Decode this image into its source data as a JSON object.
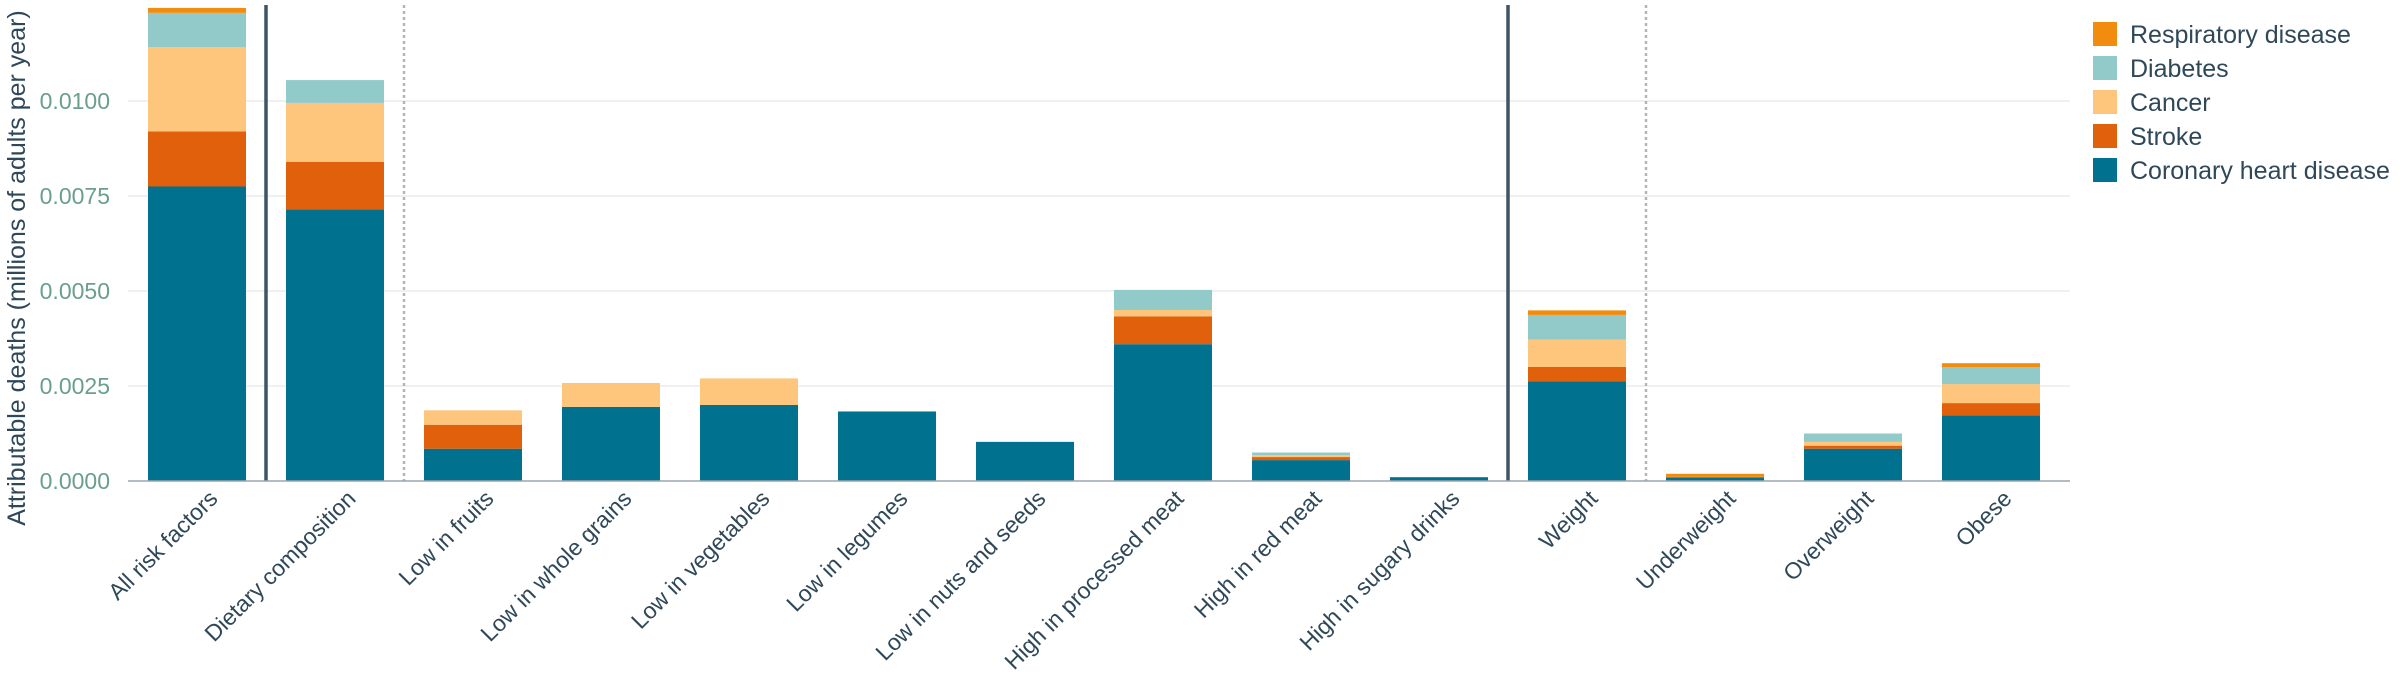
{
  "chart_data": {
    "type": "bar",
    "stacked": true,
    "ylabel": "Attributable deaths (millions of adults per year)",
    "xlabel": "",
    "ylim": [
      0,
      0.0125
    ],
    "yticks": [
      0.0,
      0.0025,
      0.005,
      0.0075,
      0.01
    ],
    "ytick_labels": [
      "0.0000",
      "0.0025",
      "0.0050",
      "0.0075",
      "0.0100"
    ],
    "grid": true,
    "legend_position": "top-right",
    "categories": [
      "All risk factors",
      "Dietary composition",
      "Low in fruits",
      "Low in whole grains",
      "Low in vegetables",
      "Low in legumes",
      "Low in nuts and seeds",
      "High in processed meat",
      "High in red meat",
      "High in sugary drinks",
      "Weight",
      "Underweight",
      "Overweight",
      "Obese"
    ],
    "series": [
      {
        "name": "Coronary heart disease",
        "color": "#00718f",
        "values": [
          0.00775,
          0.00715,
          0.00085,
          0.00195,
          0.002,
          0.00183,
          0.00103,
          0.0036,
          0.00055,
          0.0001,
          0.00262,
          8e-05,
          0.00085,
          0.00173
        ]
      },
      {
        "name": "Stroke",
        "color": "#e0600b",
        "values": [
          0.00145,
          0.00125,
          0.00063,
          0.0,
          0.0,
          0.0,
          0.0,
          0.00073,
          8e-05,
          0.0,
          0.00038,
          3e-05,
          8e-05,
          0.00032
        ]
      },
      {
        "name": "Cancer",
        "color": "#fdc67c",
        "values": [
          0.00222,
          0.00155,
          0.00038,
          0.00063,
          0.0007,
          0.0,
          0.0,
          0.00017,
          5e-05,
          0.0,
          0.00072,
          0.0,
          0.0001,
          0.0005
        ]
      },
      {
        "name": "Diabetes",
        "color": "#92c9c9",
        "values": [
          0.0009,
          0.0006,
          0.0,
          0.0,
          0.0,
          0.0,
          0.0,
          0.00053,
          7e-05,
          0.0,
          0.00065,
          0.0,
          0.00022,
          0.00045
        ]
      },
      {
        "name": "Respiratory disease",
        "color": "#f18c0f",
        "values": [
          0.00013,
          0.0,
          0.0,
          0.0,
          0.0,
          0.0,
          0.0,
          0.0,
          0.0,
          0.0,
          0.00012,
          8e-05,
          0.0,
          0.0001
        ]
      }
    ],
    "legend_order": [
      "Respiratory disease",
      "Diabetes",
      "Cancer",
      "Stroke",
      "Coronary heart disease"
    ]
  }
}
